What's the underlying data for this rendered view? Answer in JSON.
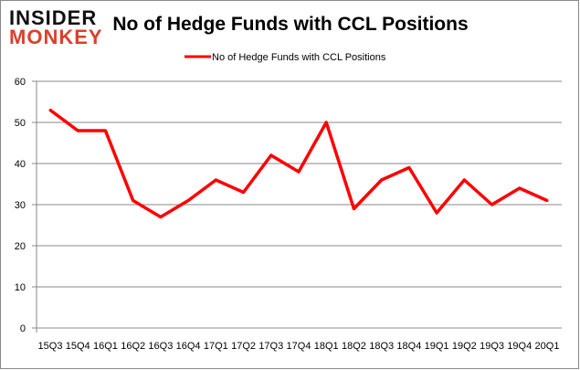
{
  "logo": {
    "line1": "INSIDER",
    "line2": "MONKEY"
  },
  "chart_data": {
    "type": "line",
    "title": "No of Hedge Funds with CCL Positions",
    "legend": {
      "position": "top-center",
      "entries": [
        "No of Hedge Funds with CCL Positions"
      ]
    },
    "xlabel": "",
    "ylabel": "",
    "ylim": [
      0,
      60
    ],
    "yticks": [
      0,
      10,
      20,
      30,
      40,
      50,
      60
    ],
    "grid": true,
    "categories": [
      "15Q3",
      "15Q4",
      "16Q1",
      "16Q2",
      "16Q3",
      "16Q4",
      "17Q1",
      "17Q2",
      "17Q3",
      "17Q4",
      "18Q1",
      "18Q2",
      "18Q3",
      "18Q4",
      "19Q1",
      "19Q2",
      "19Q3",
      "19Q4",
      "20Q1"
    ],
    "series": [
      {
        "name": "No of Hedge Funds with CCL Positions",
        "color": "#ff0000",
        "values": [
          53,
          48,
          48,
          31,
          27,
          31,
          36,
          33,
          42,
          38,
          50,
          29,
          36,
          39,
          28,
          36,
          30,
          34,
          31
        ]
      }
    ]
  }
}
